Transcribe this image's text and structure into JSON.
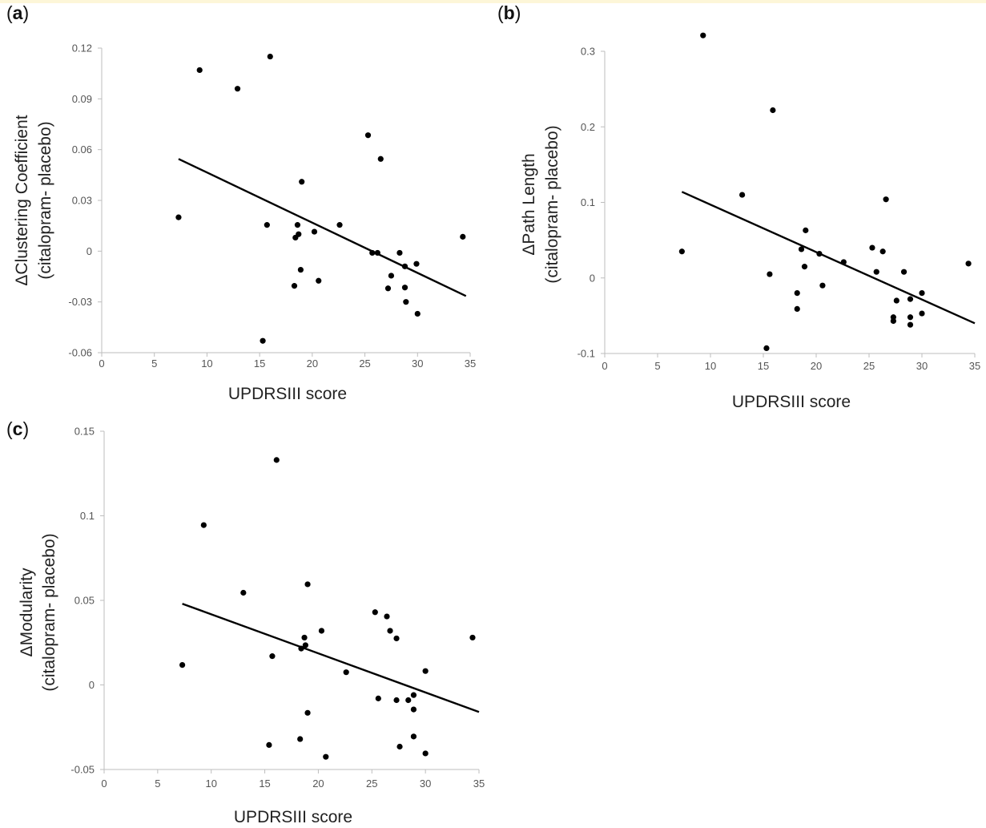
{
  "chart_data": [
    {
      "type": "scatter",
      "panel_label": "a",
      "xlabel": "UPDRSIII score",
      "ylabel": [
        "ΔClustering Coefficient",
        "(citalopram- placebo)"
      ],
      "xlim": [
        0,
        35
      ],
      "ylim": [
        -0.06,
        0.12
      ],
      "xticks": [
        0,
        5,
        10,
        15,
        20,
        25,
        30,
        35
      ],
      "yticks": [
        -0.06,
        -0.03,
        0,
        0.03,
        0.06,
        0.09,
        0.12
      ],
      "ytick_labels": [
        "-0.06",
        "-0.03",
        "0",
        "0.03",
        "0.06",
        "0.09",
        "0.12"
      ],
      "grid": false,
      "trendline": {
        "x": [
          7.3,
          34.6
        ],
        "y": [
          0.0545,
          -0.0265
        ]
      },
      "points": [
        {
          "x": 7.3,
          "y": 0.02
        },
        {
          "x": 9.3,
          "y": 0.107
        },
        {
          "x": 12.9,
          "y": 0.096
        },
        {
          "x": 15.3,
          "y": -0.053
        },
        {
          "x": 15.7,
          "y": 0.0155
        },
        {
          "x": 16.0,
          "y": 0.115
        },
        {
          "x": 18.3,
          "y": -0.0205
        },
        {
          "x": 18.4,
          "y": 0.008
        },
        {
          "x": 18.6,
          "y": 0.0155
        },
        {
          "x": 18.7,
          "y": 0.01
        },
        {
          "x": 18.9,
          "y": -0.011
        },
        {
          "x": 19.0,
          "y": 0.041
        },
        {
          "x": 20.2,
          "y": 0.0115
        },
        {
          "x": 20.6,
          "y": -0.0175
        },
        {
          "x": 22.6,
          "y": 0.0155
        },
        {
          "x": 25.3,
          "y": 0.0685
        },
        {
          "x": 25.7,
          "y": -0.001
        },
        {
          "x": 26.2,
          "y": -0.001
        },
        {
          "x": 26.5,
          "y": 0.0545
        },
        {
          "x": 27.2,
          "y": -0.022
        },
        {
          "x": 27.5,
          "y": -0.0145
        },
        {
          "x": 28.3,
          "y": -0.001
        },
        {
          "x": 28.8,
          "y": -0.009
        },
        {
          "x": 28.8,
          "y": -0.0215
        },
        {
          "x": 28.9,
          "y": -0.03
        },
        {
          "x": 29.9,
          "y": -0.0075
        },
        {
          "x": 30.0,
          "y": -0.037
        },
        {
          "x": 34.3,
          "y": 0.0085
        }
      ]
    },
    {
      "type": "scatter",
      "panel_label": "b",
      "xlabel": "UPDRSIII score",
      "ylabel": [
        "ΔPath Length",
        "(citalopram- placebo)"
      ],
      "xlim": [
        0,
        35
      ],
      "ylim": [
        -0.1,
        0.3
      ],
      "xticks": [
        0,
        5,
        10,
        15,
        20,
        25,
        30,
        35
      ],
      "yticks": [
        -0.1,
        0,
        0.1,
        0.2,
        0.3
      ],
      "ytick_labels": [
        "-0.1",
        "0",
        "0.1",
        "0.2",
        "0.3"
      ],
      "grid": false,
      "trendline": {
        "x": [
          7.3,
          35.0
        ],
        "y": [
          0.114,
          -0.06
        ]
      },
      "points": [
        {
          "x": 7.3,
          "y": 0.035
        },
        {
          "x": 9.3,
          "y": 0.321
        },
        {
          "x": 13.0,
          "y": 0.11
        },
        {
          "x": 15.3,
          "y": -0.093
        },
        {
          "x": 15.6,
          "y": 0.005
        },
        {
          "x": 15.9,
          "y": 0.222
        },
        {
          "x": 18.2,
          "y": -0.041
        },
        {
          "x": 18.2,
          "y": -0.02
        },
        {
          "x": 18.6,
          "y": 0.038
        },
        {
          "x": 18.9,
          "y": 0.015
        },
        {
          "x": 19.0,
          "y": 0.063
        },
        {
          "x": 20.3,
          "y": 0.032
        },
        {
          "x": 20.6,
          "y": -0.01
        },
        {
          "x": 22.6,
          "y": 0.021
        },
        {
          "x": 25.3,
          "y": 0.04
        },
        {
          "x": 25.7,
          "y": 0.008
        },
        {
          "x": 26.3,
          "y": 0.035
        },
        {
          "x": 26.6,
          "y": 0.104
        },
        {
          "x": 27.3,
          "y": -0.052
        },
        {
          "x": 27.3,
          "y": -0.057
        },
        {
          "x": 27.6,
          "y": -0.03
        },
        {
          "x": 28.3,
          "y": 0.008
        },
        {
          "x": 28.9,
          "y": -0.028
        },
        {
          "x": 28.9,
          "y": -0.052
        },
        {
          "x": 28.9,
          "y": -0.062
        },
        {
          "x": 30.0,
          "y": -0.02
        },
        {
          "x": 30.0,
          "y": -0.047
        },
        {
          "x": 34.4,
          "y": 0.019
        }
      ]
    },
    {
      "type": "scatter",
      "panel_label": "c",
      "xlabel": "UPDRSIII score",
      "ylabel": [
        "ΔModularity",
        "(citalopram- placebo)"
      ],
      "xlim": [
        0,
        35
      ],
      "ylim": [
        -0.05,
        0.15
      ],
      "xticks": [
        0,
        5,
        10,
        15,
        20,
        25,
        30,
        35
      ],
      "yticks": [
        -0.05,
        0,
        0.05,
        0.1,
        0.15
      ],
      "ytick_labels": [
        "-0.05",
        "0",
        "0.05",
        "0.1",
        "0.15"
      ],
      "grid": false,
      "trendline": {
        "x": [
          7.3,
          35.0
        ],
        "y": [
          0.048,
          -0.016
        ]
      },
      "points": [
        {
          "x": 7.3,
          "y": 0.0118
        },
        {
          "x": 9.3,
          "y": 0.0945
        },
        {
          "x": 13.0,
          "y": 0.0545
        },
        {
          "x": 15.4,
          "y": -0.0355
        },
        {
          "x": 15.7,
          "y": 0.017
        },
        {
          "x": 16.1,
          "y": 0.133
        },
        {
          "x": 18.3,
          "y": -0.032
        },
        {
          "x": 18.4,
          "y": 0.0215
        },
        {
          "x": 18.7,
          "y": 0.028
        },
        {
          "x": 18.8,
          "y": 0.0235
        },
        {
          "x": 19.0,
          "y": 0.0595
        },
        {
          "x": 19.0,
          "y": -0.0165
        },
        {
          "x": 20.3,
          "y": 0.032
        },
        {
          "x": 20.7,
          "y": -0.0425
        },
        {
          "x": 22.6,
          "y": 0.0075
        },
        {
          "x": 25.3,
          "y": 0.043
        },
        {
          "x": 25.6,
          "y": -0.008
        },
        {
          "x": 26.4,
          "y": 0.0405
        },
        {
          "x": 26.7,
          "y": 0.032
        },
        {
          "x": 27.3,
          "y": 0.0275
        },
        {
          "x": 27.3,
          "y": -0.009
        },
        {
          "x": 27.6,
          "y": -0.0365
        },
        {
          "x": 28.4,
          "y": -0.009
        },
        {
          "x": 28.9,
          "y": -0.006
        },
        {
          "x": 28.9,
          "y": -0.0145
        },
        {
          "x": 28.9,
          "y": -0.0305
        },
        {
          "x": 30.0,
          "y": 0.0082
        },
        {
          "x": 30.0,
          "y": -0.0405
        },
        {
          "x": 34.4,
          "y": 0.028
        }
      ]
    }
  ]
}
